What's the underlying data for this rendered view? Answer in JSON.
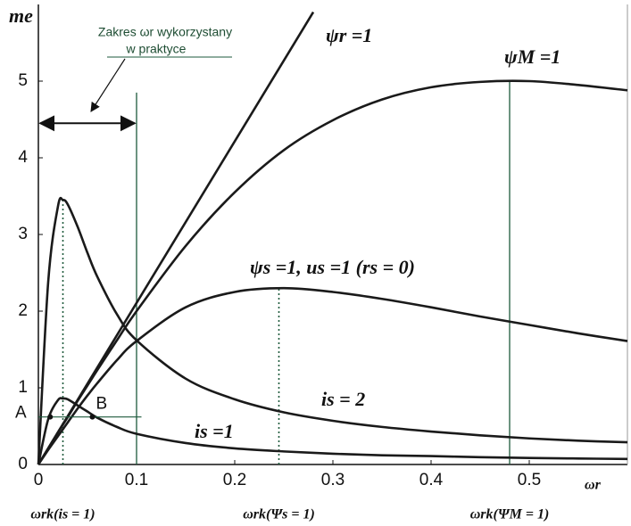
{
  "chart_data": {
    "type": "line",
    "ylabel": "me",
    "xlabel": "ωr",
    "xlim": [
      0,
      0.6
    ],
    "ylim": [
      0,
      6
    ],
    "xticks": [
      0,
      0.1,
      0.2,
      0.3,
      0.4,
      0.5
    ],
    "yticks": [
      0,
      1,
      2,
      3,
      4,
      5
    ],
    "series": [
      {
        "name": "ψr =1",
        "color": "#1a1a1a",
        "x": [
          0,
          0.28
        ],
        "values": [
          0,
          5.9
        ]
      },
      {
        "name": "ψM =1",
        "color": "#1a1a1a",
        "x": [
          0,
          0.01,
          0.02,
          0.025,
          0.03,
          0.04,
          0.05,
          0.06,
          0.08,
          0.1,
          0.15,
          0.2,
          0.25,
          0.3,
          0.35,
          0.4,
          0.45,
          0.5,
          0.55,
          0.6
        ],
        "values": [
          0,
          0.21,
          0.42,
          0.52,
          0.62,
          0.83,
          1.03,
          1.23,
          1.62,
          2.0,
          2.85,
          3.55,
          4.1,
          4.49,
          4.76,
          4.92,
          4.99,
          5.0,
          4.95,
          4.88
        ]
      },
      {
        "name": "ψs =1,  us =1  (rs = 0)",
        "color": "#1a1a1a",
        "x": [
          0,
          0.01,
          0.02,
          0.025,
          0.03,
          0.04,
          0.05,
          0.06,
          0.08,
          0.1,
          0.15,
          0.2,
          0.25,
          0.3,
          0.35,
          0.4,
          0.45,
          0.5,
          0.55,
          0.6
        ],
        "values": [
          0,
          0.19,
          0.37,
          0.46,
          0.55,
          0.73,
          0.9,
          1.06,
          1.36,
          1.61,
          2.05,
          2.25,
          2.3,
          2.25,
          2.16,
          2.05,
          1.93,
          1.82,
          1.71,
          1.61
        ]
      },
      {
        "name": "is = 2",
        "color": "#1a1a1a",
        "x": [
          0,
          0.01,
          0.02,
          0.025,
          0.03,
          0.04,
          0.05,
          0.06,
          0.08,
          0.1,
          0.15,
          0.2,
          0.25,
          0.3,
          0.35,
          0.4,
          0.45,
          0.5,
          0.55,
          0.6
        ],
        "values": [
          0,
          2.38,
          3.37,
          3.45,
          3.39,
          3.1,
          2.76,
          2.45,
          1.96,
          1.62,
          1.12,
          0.85,
          0.68,
          0.57,
          0.49,
          0.43,
          0.38,
          0.34,
          0.31,
          0.29
        ]
      },
      {
        "name": "is =1",
        "color": "#1a1a1a",
        "x": [
          0,
          0.01,
          0.02,
          0.025,
          0.03,
          0.04,
          0.05,
          0.06,
          0.08,
          0.1,
          0.15,
          0.2,
          0.25,
          0.3,
          0.35,
          0.4,
          0.45,
          0.5,
          0.55,
          0.6
        ],
        "values": [
          0,
          0.59,
          0.84,
          0.86,
          0.85,
          0.77,
          0.69,
          0.61,
          0.49,
          0.4,
          0.28,
          0.21,
          0.17,
          0.14,
          0.12,
          0.11,
          0.095,
          0.085,
          0.078,
          0.072
        ]
      }
    ],
    "markers": [
      {
        "label": "ωrk(is = 1)",
        "x": 0.025,
        "y": 3.45,
        "style": "dotted"
      },
      {
        "x": 0.1,
        "y": 4.85,
        "style": "solid"
      },
      {
        "label": "ωrk(Ψs = 1)",
        "x": 0.245,
        "y": 2.3,
        "style": "dotted"
      },
      {
        "label": "ωrk(ΨM = 1)",
        "x": 0.48,
        "y": 5.0,
        "style": "solid"
      }
    ],
    "range": {
      "text": [
        "Zakres ωr wykorzystany",
        "w praktyce"
      ],
      "x": [
        0,
        0.1
      ],
      "y": 4.45
    },
    "level": {
      "y": 0.62,
      "x": [
        0,
        0.105
      ]
    },
    "points": [
      {
        "label": "A",
        "x": 0.012,
        "y": 0.62
      },
      {
        "label": "B",
        "x": 0.055,
        "y": 0.62
      }
    ]
  }
}
